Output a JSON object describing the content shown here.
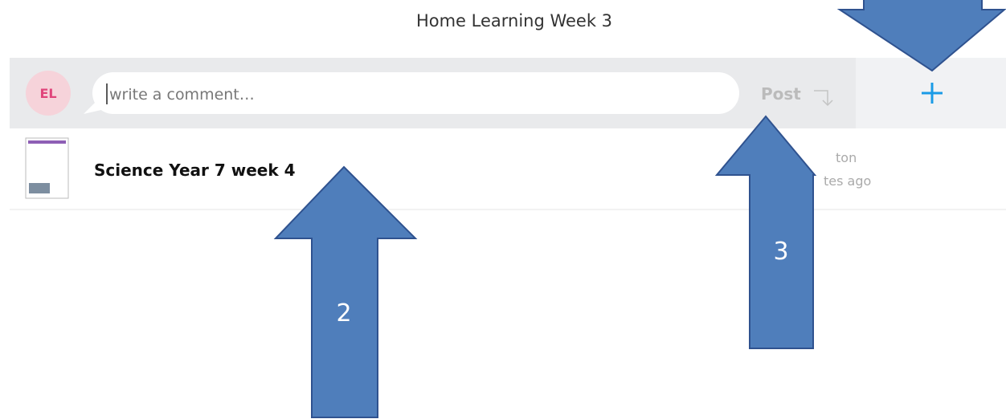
{
  "header": {
    "title": "Home Learning Week 3"
  },
  "comment_bar": {
    "avatar": "EL",
    "placeholder": "write a comment…",
    "post_button": "Post"
  },
  "items": [
    {
      "title": "Science Year 7 week 4",
      "author_fragment": "ton",
      "time_fragment": "tes ago"
    }
  ],
  "annotations": [
    {
      "label": "2"
    },
    {
      "label": "3"
    }
  ]
}
